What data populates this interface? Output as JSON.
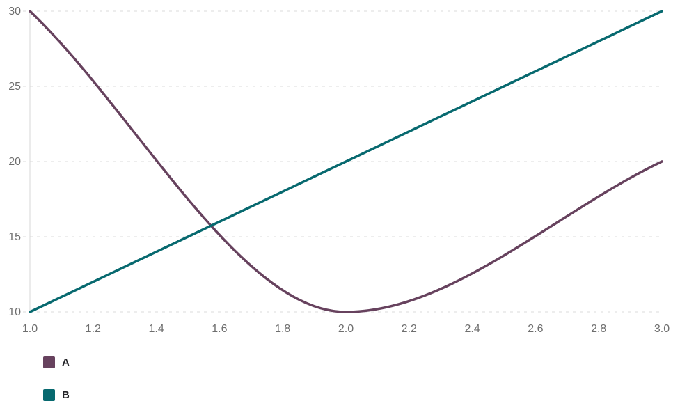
{
  "chart_data": {
    "type": "line",
    "title": "",
    "xlabel": "",
    "ylabel": "",
    "x": [
      1,
      2,
      3
    ],
    "series": [
      {
        "name": "A",
        "values": [
          30,
          10,
          20
        ],
        "color": "#67425e",
        "curve": "monotone"
      },
      {
        "name": "B",
        "values": [
          10,
          20,
          30
        ],
        "color": "#07696f",
        "curve": "linear"
      }
    ],
    "xlim": [
      1,
      3
    ],
    "ylim": [
      10,
      30
    ],
    "x_ticks": [
      "1.0",
      "1.2",
      "1.4",
      "1.6",
      "1.8",
      "2.0",
      "2.2",
      "2.4",
      "2.6",
      "2.8",
      "3.0"
    ],
    "y_ticks": [
      "10",
      "15",
      "20",
      "25",
      "30"
    ],
    "grid": "horizontal dashed",
    "legend_position": "bottom-left"
  },
  "style": {
    "grid_color": "#dbdbdb",
    "axis_color": "#d7d7d7",
    "tick_label_color": "#6e6e6e",
    "legend_label_color": "#222226",
    "background": "#ffffff",
    "line_width": 3.5
  }
}
